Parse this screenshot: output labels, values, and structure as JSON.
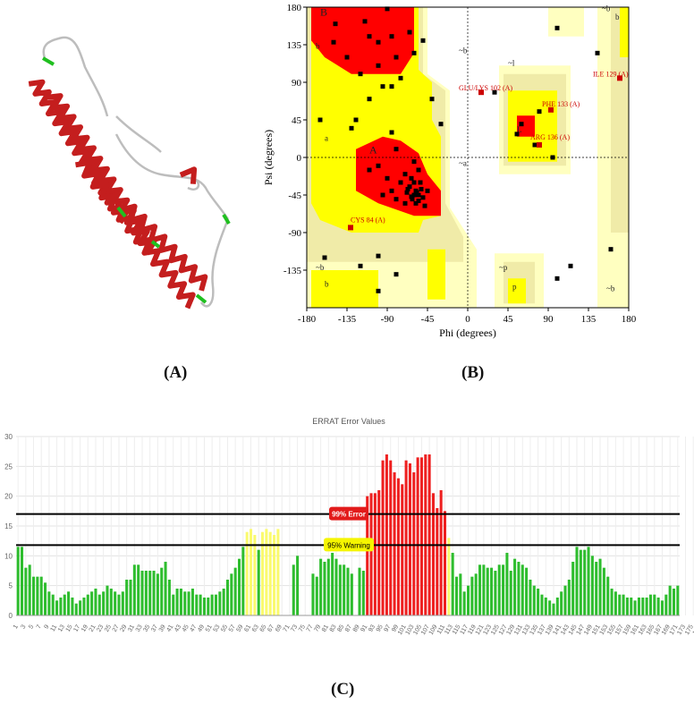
{
  "captions": {
    "a": "(A)",
    "b": "(B)",
    "c": "(C)"
  },
  "protein_model": {
    "colors": {
      "helix": "#c41e1e",
      "loop": "#bdbdbd",
      "turn": "#1fbf1f"
    }
  },
  "ramachandran": {
    "xlabel": "Phi (degrees)",
    "ylabel": "Psi (degrees)",
    "xticks": [
      "-180",
      "-135",
      "-90",
      "-45",
      "0",
      "45",
      "90",
      "135",
      "180"
    ],
    "yticks": [
      "180",
      "135",
      "90",
      "45",
      "0",
      "-45",
      "-90",
      "-135"
    ],
    "region_labels": [
      "B",
      "b",
      "~b",
      "a",
      "A",
      "~a",
      "L",
      "~l",
      "~b",
      "b",
      "~p",
      "p",
      "~b",
      "~b",
      "b"
    ],
    "residue_labels": [
      "ILE 129 (A)",
      "GLU/LYS 102 (A)",
      "PHE 133 (A)",
      "ARG 136 (A)",
      "CYS 84 (A)"
    ],
    "colors": {
      "core": "#ff0000",
      "allowed": "#ffff00",
      "generous": "#f0eba8",
      "light": "#ffffc0"
    }
  },
  "errat": {
    "title": "ERRAT Error Values",
    "yticks": [
      "0",
      "5",
      "10",
      "15",
      "20",
      "25",
      "30"
    ],
    "error_label": "99% Error",
    "warning_label": "95% Warning",
    "error_line": 17,
    "warning_line": 11.8,
    "xticks": [
      "1",
      "3",
      "5",
      "7",
      "9",
      "11",
      "13",
      "15",
      "17",
      "19",
      "21",
      "23",
      "25",
      "27",
      "29",
      "31",
      "33",
      "35",
      "37",
      "39",
      "41",
      "43",
      "45",
      "47",
      "49",
      "51",
      "53",
      "55",
      "57",
      "59",
      "61",
      "63",
      "65",
      "67",
      "69",
      "71",
      "73",
      "75",
      "77",
      "79",
      "81",
      "83",
      "85",
      "87",
      "89",
      "91",
      "93",
      "95",
      "97",
      "99",
      "101",
      "103",
      "105",
      "107",
      "109",
      "111",
      "113",
      "115",
      "117",
      "119",
      "121",
      "123",
      "125",
      "127",
      "129",
      "131",
      "133",
      "135",
      "137",
      "139",
      "141",
      "143",
      "145",
      "147",
      "149",
      "151",
      "153",
      "155",
      "157",
      "159",
      "161",
      "163",
      "165",
      "167",
      "169",
      "171",
      "173",
      "175",
      "177",
      "179"
    ],
    "colors": {
      "green": "#2ebd2e",
      "yellow": "#fafa6e",
      "red": "#ee1f1f"
    }
  },
  "chart_data": [
    {
      "type": "scatter",
      "title": "",
      "xlabel": "Phi (degrees)",
      "ylabel": "Psi (degrees)",
      "xlim": [
        -180,
        180
      ],
      "ylim": [
        -180,
        180
      ],
      "grid": false,
      "points": [
        [
          -90,
          178
        ],
        [
          -148,
          160
        ],
        [
          -115,
          163
        ],
        [
          -100,
          138
        ],
        [
          -85,
          145
        ],
        [
          -65,
          150
        ],
        [
          -135,
          120
        ],
        [
          -120,
          100
        ],
        [
          -100,
          110
        ],
        [
          -80,
          120
        ],
        [
          -60,
          125
        ],
        [
          -50,
          140
        ],
        [
          -150,
          138
        ],
        [
          -75,
          95
        ],
        [
          -95,
          85
        ],
        [
          -110,
          70
        ],
        [
          -125,
          45
        ],
        [
          -130,
          35
        ],
        [
          -85,
          30
        ],
        [
          -80,
          10
        ],
        [
          -165,
          45
        ],
        [
          -60,
          -5
        ],
        [
          -55,
          -15
        ],
        [
          -70,
          -20
        ],
        [
          -90,
          -25
        ],
        [
          -100,
          -10
        ],
        [
          -110,
          -15
        ],
        [
          -75,
          -30
        ],
        [
          -60,
          -30
        ],
        [
          -65,
          -35
        ],
        [
          -58,
          -40
        ],
        [
          -55,
          -45
        ],
        [
          -52,
          -38
        ],
        [
          -50,
          -48
        ],
        [
          -62,
          -50
        ],
        [
          -68,
          -42
        ],
        [
          -45,
          -40
        ],
        [
          -58,
          -55
        ],
        [
          -70,
          -55
        ],
        [
          -80,
          -50
        ],
        [
          -85,
          -40
        ],
        [
          -95,
          -45
        ],
        [
          -48,
          -58
        ],
        [
          -63,
          -25
        ],
        [
          -53,
          -30
        ],
        [
          -67,
          -38
        ],
        [
          -60,
          -45
        ],
        [
          -57,
          -42
        ],
        [
          -63,
          -47
        ],
        [
          -55,
          -52
        ],
        [
          -131,
          -84
        ],
        [
          -160,
          -120
        ],
        [
          -120,
          -130
        ],
        [
          -80,
          -140
        ],
        [
          -100,
          -160
        ],
        [
          -85,
          85
        ],
        [
          -110,
          145
        ],
        [
          -40,
          70
        ],
        [
          -30,
          40
        ],
        [
          15,
          78
        ],
        [
          30,
          78
        ],
        [
          60,
          40
        ],
        [
          55,
          28
        ],
        [
          80,
          55
        ],
        [
          75,
          15
        ],
        [
          95,
          0
        ],
        [
          170,
          95
        ],
        [
          160,
          -110
        ],
        [
          100,
          -145
        ],
        [
          145,
          125
        ],
        [
          115,
          -130
        ],
        [
          100,
          155
        ],
        [
          -100,
          -118
        ]
      ],
      "labeled_residues": [
        {
          "label": "ILE 129 (A)",
          "phi": 170,
          "psi": 95
        },
        {
          "label": "GLU/LYS 102 (A)",
          "phi": 15,
          "psi": 78
        },
        {
          "label": "PHE 133 (A)",
          "phi": 93,
          "psi": 57
        },
        {
          "label": "ARG 136 (A)",
          "phi": 80,
          "psi": 15
        },
        {
          "label": "CYS 84 (A)",
          "phi": -131,
          "psi": -84
        }
      ]
    },
    {
      "type": "bar",
      "title": "ERRAT Error Values",
      "xlabel": "",
      "ylabel": "",
      "ylim": [
        0,
        30
      ],
      "grid": true,
      "error_line": 17,
      "warning_line": 11.8,
      "categories_start": 1,
      "values": [
        11.5,
        11.5,
        8,
        8.5,
        6.5,
        6.5,
        6.5,
        5.5,
        4,
        3.5,
        2.5,
        3,
        3.5,
        4,
        3,
        2,
        2.5,
        3,
        3.5,
        4,
        4.5,
        3.5,
        4,
        5,
        4.5,
        4,
        3.5,
        4,
        6,
        6,
        8.5,
        8.5,
        7.5,
        7.5,
        7.5,
        7.5,
        7,
        8,
        9,
        6,
        3.5,
        4.5,
        4.5,
        4,
        4,
        4.5,
        3.5,
        3.5,
        3,
        3,
        3.5,
        3.5,
        4,
        4.5,
        6,
        7,
        8,
        9.5,
        11.5,
        14,
        14.5,
        13.5,
        11,
        14,
        14.5,
        14,
        13.5,
        14.5,
        0,
        0,
        0,
        8.5,
        10,
        0,
        0,
        0,
        7,
        6.5,
        9.5,
        9,
        9.5,
        10.5,
        9.5,
        8.5,
        8.5,
        8,
        7,
        0,
        8,
        7.5,
        20,
        20.5,
        20.5,
        21,
        26,
        27,
        26,
        24,
        23,
        22,
        26,
        25.5,
        24,
        26.5,
        26.5,
        27,
        27,
        20.5,
        18,
        21,
        17.5,
        13,
        10.5,
        6.5,
        7,
        4,
        5,
        6.5,
        7,
        8.5,
        8.5,
        8,
        8,
        7.5,
        8.5,
        8.5,
        10.5,
        7.5,
        9.5,
        9,
        8.5,
        8,
        6,
        5,
        4.5,
        3.5,
        3,
        2.5,
        2,
        3,
        4,
        5,
        6,
        9,
        11.5,
        11,
        11,
        11.5,
        10,
        9,
        9.5,
        8,
        6.5,
        4.5,
        4,
        3.5,
        3.5,
        3,
        3,
        2.5,
        3,
        3,
        3,
        3.5,
        3.5,
        3,
        2.5,
        3.5,
        5,
        4.5,
        5
      ],
      "bar_colors": "yellow where value > 11.8 and <= 17, red where value > 17, green otherwise"
    }
  ]
}
